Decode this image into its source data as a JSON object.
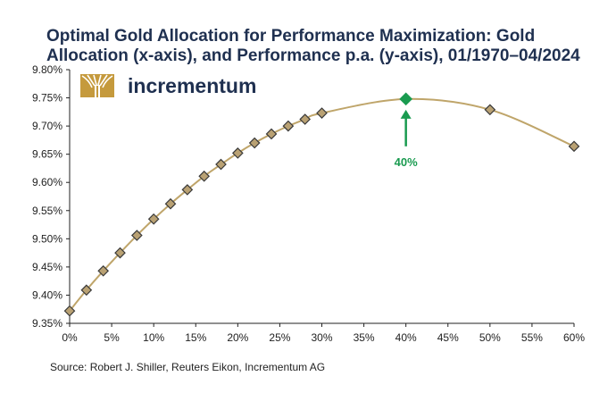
{
  "chart_data": {
    "type": "line",
    "title_line1": "Optimal Gold Allocation for Performance Maximization: Gold",
    "title_line2": "Allocation (x-axis), and Performance p.a. (y-axis), 01/1970–04/2024",
    "xlabel": "",
    "ylabel": "",
    "xlim": [
      0,
      60
    ],
    "ylim": [
      9.35,
      9.8
    ],
    "x_ticks": [
      0,
      5,
      10,
      15,
      20,
      25,
      30,
      35,
      40,
      45,
      50,
      55,
      60
    ],
    "x_tick_labels": [
      "0%",
      "5%",
      "10%",
      "15%",
      "20%",
      "25%",
      "30%",
      "35%",
      "40%",
      "45%",
      "50%",
      "55%",
      "60%"
    ],
    "y_ticks": [
      9.35,
      9.4,
      9.45,
      9.5,
      9.55,
      9.6,
      9.65,
      9.7,
      9.75,
      9.8
    ],
    "y_tick_labels": [
      "9.35%",
      "9.40%",
      "9.45%",
      "9.50%",
      "9.55%",
      "9.60%",
      "9.65%",
      "9.70%",
      "9.75%",
      "9.80%"
    ],
    "series": [
      {
        "name": "Performance p.a.",
        "x": [
          0,
          2,
          4,
          6,
          8,
          10,
          12,
          14,
          16,
          18,
          20,
          22,
          24,
          26,
          28,
          30,
          40,
          50,
          60
        ],
        "y": [
          9.372,
          9.409,
          9.443,
          9.475,
          9.506,
          9.535,
          9.562,
          9.587,
          9.611,
          9.632,
          9.652,
          9.67,
          9.686,
          9.7,
          9.712,
          9.723,
          9.748,
          9.729,
          9.664
        ]
      }
    ],
    "highlight": {
      "x": 40,
      "y": 9.748,
      "label": "40%"
    },
    "grid": false,
    "legend": "none"
  },
  "logo": {
    "text": "incrementum"
  },
  "source": "Source: Robert J. Shiller, Reuters Eikon, Incrementum AG",
  "colors": {
    "line": "#bfa56a",
    "marker_fill": "#b9a173",
    "marker_edge": "#3a3a3a",
    "highlight": "#1a9b50",
    "title": "#1f3050",
    "logo_gold": "#c59a3d",
    "axis": "#222222"
  }
}
